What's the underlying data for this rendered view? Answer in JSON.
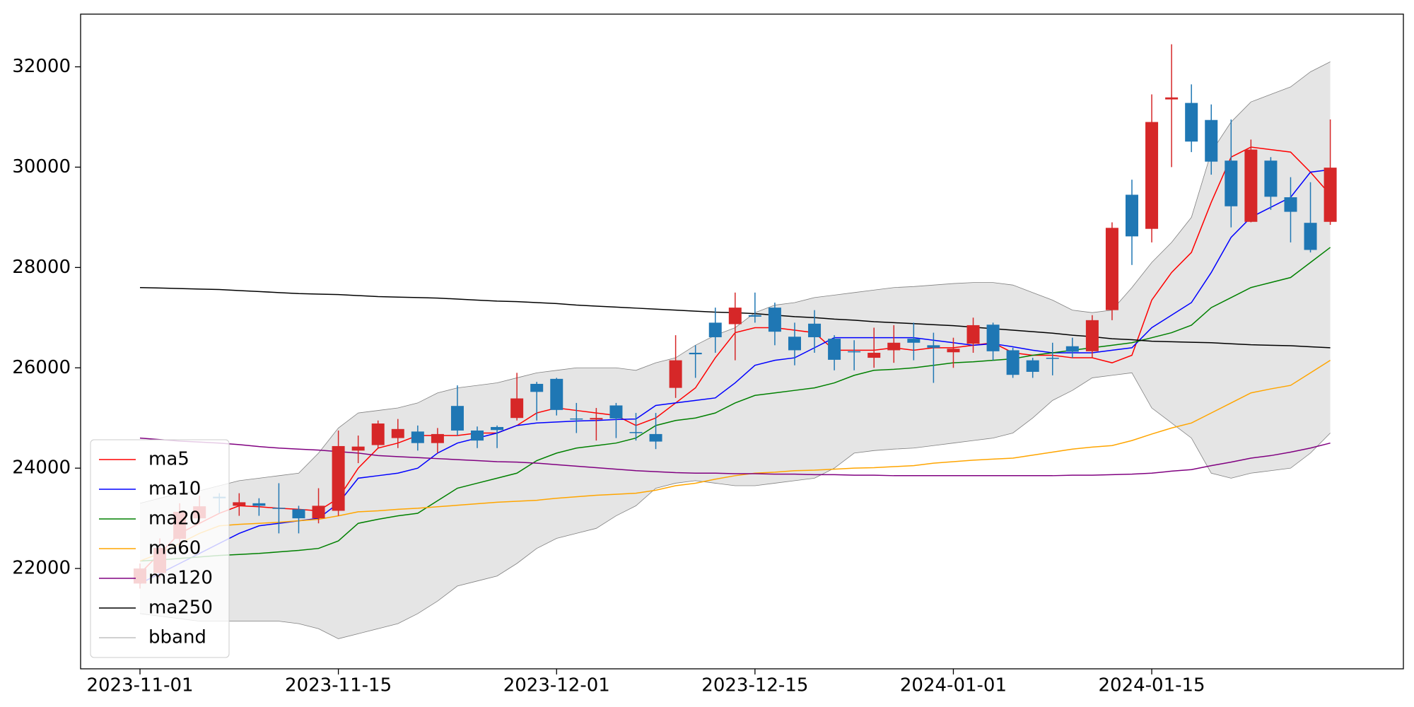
{
  "chart_data": {
    "type": "candlestick",
    "x": [
      "2023-11-01",
      "2023-11-02",
      "2023-11-03",
      "2023-11-06",
      "2023-11-07",
      "2023-11-08",
      "2023-11-09",
      "2023-11-10",
      "2023-11-13",
      "2023-11-14",
      "2023-11-15",
      "2023-11-16",
      "2023-11-17",
      "2023-11-20",
      "2023-11-21",
      "2023-11-22",
      "2023-11-24",
      "2023-11-27",
      "2023-11-28",
      "2023-11-29",
      "2023-11-30",
      "2023-12-01",
      "2023-12-04",
      "2023-12-05",
      "2023-12-06",
      "2023-12-07",
      "2023-12-08",
      "2023-12-11",
      "2023-12-12",
      "2023-12-13",
      "2023-12-14",
      "2023-12-15",
      "2023-12-18",
      "2023-12-19",
      "2023-12-20",
      "2023-12-21",
      "2023-12-22",
      "2023-12-26",
      "2023-12-27",
      "2023-12-28",
      "2023-12-29",
      "2024-01-01",
      "2024-01-02",
      "2024-01-03",
      "2024-01-04",
      "2024-01-05",
      "2024-01-08",
      "2024-01-09",
      "2024-01-10",
      "2024-01-11",
      "2024-01-12",
      "2024-01-15",
      "2024-01-16",
      "2024-01-17",
      "2024-01-18",
      "2024-01-19",
      "2024-01-22",
      "2024-01-23",
      "2024-01-24",
      "2024-01-25",
      "2024-01-26"
    ],
    "open": [
      21700,
      21910,
      22590,
      23000,
      23430,
      23250,
      23300,
      23210,
      23180,
      23000,
      23150,
      24350,
      24460,
      24600,
      24730,
      24500,
      25240,
      24750,
      24820,
      25000,
      25680,
      25780,
      24990,
      24970,
      25250,
      24720,
      24680,
      25600,
      26300,
      26900,
      26870,
      27050,
      27200,
      26620,
      26880,
      26580,
      26330,
      26200,
      26350,
      26580,
      26450,
      26310,
      26480,
      26860,
      26350,
      26150,
      26200,
      26430,
      26330,
      27150,
      29450,
      28770,
      31350,
      31280,
      30940,
      30130,
      28910,
      30130,
      29400,
      28890,
      28910
    ],
    "high": [
      22100,
      22600,
      23300,
      23450,
      23500,
      23500,
      23400,
      23700,
      23250,
      23600,
      24750,
      24650,
      24950,
      24980,
      24850,
      24800,
      25650,
      24830,
      24850,
      25900,
      25720,
      25800,
      25300,
      25200,
      25300,
      25100,
      25100,
      26650,
      26450,
      27200,
      27500,
      27500,
      27300,
      26900,
      27150,
      26650,
      26550,
      26800,
      26850,
      26900,
      26700,
      26600,
      27000,
      26900,
      26400,
      26200,
      26500,
      26600,
      27050,
      28900,
      29750,
      31450,
      32450,
      31650,
      31250,
      30950,
      30550,
      30200,
      29800,
      29700,
      30950
    ],
    "low": [
      21600,
      21800,
      22400,
      22900,
      23100,
      23050,
      23050,
      22700,
      22700,
      22900,
      23050,
      24100,
      24400,
      24400,
      24350,
      24300,
      24650,
      24400,
      24400,
      24950,
      24950,
      25050,
      24700,
      24550,
      24600,
      24550,
      24380,
      25400,
      25800,
      26300,
      26150,
      26900,
      26450,
      26050,
      26300,
      25950,
      25950,
      26000,
      26100,
      26150,
      25700,
      26000,
      26300,
      26150,
      25800,
      25800,
      25850,
      26200,
      26200,
      26950,
      28050,
      28500,
      30000,
      30300,
      29850,
      28800,
      28900,
      29150,
      28500,
      28300,
      28850
    ],
    "close": [
      22000,
      22410,
      23130,
      23240,
      23400,
      23320,
      23250,
      23190,
      23000,
      23250,
      24440,
      24430,
      24890,
      24780,
      24500,
      24680,
      24750,
      24550,
      24760,
      25390,
      25520,
      25160,
      24970,
      25000,
      24990,
      24700,
      24530,
      26150,
      26270,
      26610,
      27200,
      27020,
      26720,
      26350,
      26610,
      26160,
      26310,
      26300,
      26500,
      26500,
      26400,
      26380,
      26850,
      26330,
      25860,
      25920,
      26180,
      26320,
      26950,
      28790,
      28620,
      30900,
      31390,
      30510,
      30110,
      29220,
      30350,
      29410,
      29110,
      28350,
      29990
    ],
    "up_color": "#d62728",
    "down_color": "#1f77b4",
    "series": [
      {
        "name": "ma5",
        "color": "#ff0000",
        "values": [
          21900,
          22300,
          22700,
          22900,
          23100,
          23250,
          23230,
          23200,
          23180,
          23150,
          23400,
          24000,
          24400,
          24500,
          24650,
          24650,
          24650,
          24700,
          24700,
          24850,
          25100,
          25200,
          25150,
          25100,
          25050,
          24850,
          25000,
          25300,
          25600,
          26200,
          26700,
          26800,
          26800,
          26750,
          26700,
          26350,
          26350,
          26350,
          26400,
          26350,
          26400,
          26400,
          26450,
          26500,
          26300,
          26250,
          26250,
          26200,
          26200,
          26100,
          26250,
          27350,
          27900,
          28300,
          29300,
          30200,
          30400,
          30350,
          30300,
          29900,
          29450
        ]
      },
      {
        "name": "ma10",
        "color": "#0000ff",
        "values": [
          21700,
          21900,
          22100,
          22300,
          22500,
          22700,
          22850,
          22900,
          22950,
          23000,
          23300,
          23800,
          23850,
          23900,
          24000,
          24300,
          24500,
          24600,
          24700,
          24850,
          24900,
          24920,
          24940,
          24950,
          24970,
          24980,
          25250,
          25300,
          25350,
          25400,
          25700,
          26050,
          26150,
          26200,
          26400,
          26600,
          26600,
          26600,
          26600,
          26600,
          26550,
          26500,
          26450,
          26480,
          26420,
          26350,
          26300,
          26300,
          26300,
          26350,
          26400,
          26800,
          27050,
          27300,
          27900,
          28600,
          29000,
          29200,
          29400,
          29900,
          29950
        ]
      },
      {
        "name": "ma20",
        "color": "#008000",
        "values": [
          22150,
          22170,
          22200,
          22230,
          22260,
          22280,
          22300,
          22330,
          22360,
          22400,
          22550,
          22900,
          22980,
          23050,
          23100,
          23350,
          23600,
          23700,
          23800,
          23900,
          24150,
          24300,
          24400,
          24450,
          24500,
          24600,
          24850,
          24950,
          25000,
          25100,
          25300,
          25450,
          25500,
          25550,
          25600,
          25700,
          25850,
          25950,
          25970,
          26000,
          26050,
          26100,
          26120,
          26150,
          26180,
          26250,
          26300,
          26350,
          26400,
          26450,
          26500,
          26600,
          26700,
          26850,
          27200,
          27400,
          27600,
          27700,
          27800,
          28100,
          28400
        ]
      },
      {
        "name": "ma60",
        "color": "#ffa500",
        "values": [
          22150,
          22300,
          22500,
          22700,
          22850,
          22880,
          22900,
          22920,
          22950,
          22980,
          23050,
          23130,
          23150,
          23180,
          23200,
          23230,
          23260,
          23290,
          23320,
          23340,
          23360,
          23400,
          23430,
          23460,
          23480,
          23500,
          23560,
          23650,
          23700,
          23780,
          23850,
          23900,
          23920,
          23950,
          23960,
          23980,
          24000,
          24010,
          24030,
          24050,
          24100,
          24130,
          24160,
          24180,
          24200,
          24260,
          24320,
          24380,
          24420,
          24450,
          24550,
          24680,
          24800,
          24900,
          25100,
          25300,
          25500,
          25580,
          25650,
          25900,
          26150
        ]
      },
      {
        "name": "ma120",
        "color": "#800080",
        "values": [
          24600,
          24570,
          24540,
          24520,
          24500,
          24470,
          24430,
          24400,
          24380,
          24360,
          24330,
          24300,
          24250,
          24230,
          24210,
          24190,
          24170,
          24150,
          24130,
          24120,
          24100,
          24070,
          24040,
          24010,
          23980,
          23950,
          23930,
          23910,
          23900,
          23900,
          23890,
          23890,
          23880,
          23880,
          23870,
          23870,
          23860,
          23860,
          23850,
          23850,
          23850,
          23850,
          23850,
          23850,
          23850,
          23850,
          23850,
          23860,
          23860,
          23870,
          23880,
          23900,
          23940,
          23970,
          24050,
          24120,
          24200,
          24250,
          24320,
          24400,
          24500
        ]
      },
      {
        "name": "ma250",
        "color": "#000000",
        "values": [
          27600,
          27590,
          27580,
          27570,
          27560,
          27540,
          27520,
          27500,
          27480,
          27470,
          27460,
          27440,
          27420,
          27410,
          27400,
          27390,
          27370,
          27350,
          27330,
          27320,
          27300,
          27280,
          27250,
          27230,
          27210,
          27190,
          27170,
          27150,
          27130,
          27110,
          27100,
          27080,
          27050,
          27020,
          27000,
          26970,
          26950,
          26920,
          26900,
          26880,
          26860,
          26840,
          26810,
          26780,
          26750,
          26720,
          26690,
          26650,
          26620,
          26580,
          26560,
          26530,
          26520,
          26510,
          26500,
          26480,
          26460,
          26450,
          26440,
          26420,
          26400
        ]
      }
    ],
    "bband": {
      "name": "bband",
      "color": "#808080",
      "fill": "#e5e5e5",
      "upper": [
        23300,
        23400,
        23500,
        23550,
        23650,
        23750,
        23800,
        23850,
        23900,
        24300,
        24800,
        25100,
        25150,
        25200,
        25300,
        25500,
        25600,
        25650,
        25700,
        25800,
        25900,
        25950,
        26000,
        26000,
        26000,
        25950,
        26100,
        26200,
        26450,
        26650,
        26800,
        27100,
        27250,
        27300,
        27400,
        27450,
        27500,
        27550,
        27600,
        27620,
        27650,
        27680,
        27700,
        27700,
        27650,
        27500,
        27350,
        27150,
        27100,
        27150,
        27600,
        28100,
        28500,
        29000,
        30300,
        30900,
        31300,
        31450,
        31600,
        31900,
        32100
      ],
      "lower": [
        21100,
        21050,
        21000,
        20950,
        20950,
        20950,
        20950,
        20950,
        20900,
        20800,
        20600,
        20700,
        20800,
        20900,
        21100,
        21350,
        21650,
        21750,
        21850,
        22100,
        22400,
        22600,
        22700,
        22800,
        23050,
        23250,
        23600,
        23700,
        23750,
        23700,
        23650,
        23650,
        23700,
        23750,
        23800,
        24000,
        24300,
        24350,
        24380,
        24400,
        24450,
        24500,
        24550,
        24600,
        24700,
        25000,
        25350,
        25550,
        25800,
        25850,
        25900,
        25200,
        24900,
        24600,
        23900,
        23800,
        23900,
        23950,
        24000,
        24300,
        24700
      ]
    },
    "ylim": [
      20000,
      33050
    ],
    "yticks": [
      22000,
      24000,
      26000,
      28000,
      30000,
      32000
    ],
    "xticks": [
      "2023-11-01",
      "2023-11-15",
      "2023-12-01",
      "2023-12-15",
      "2024-01-01",
      "2024-01-15"
    ],
    "legend": "lower left"
  }
}
